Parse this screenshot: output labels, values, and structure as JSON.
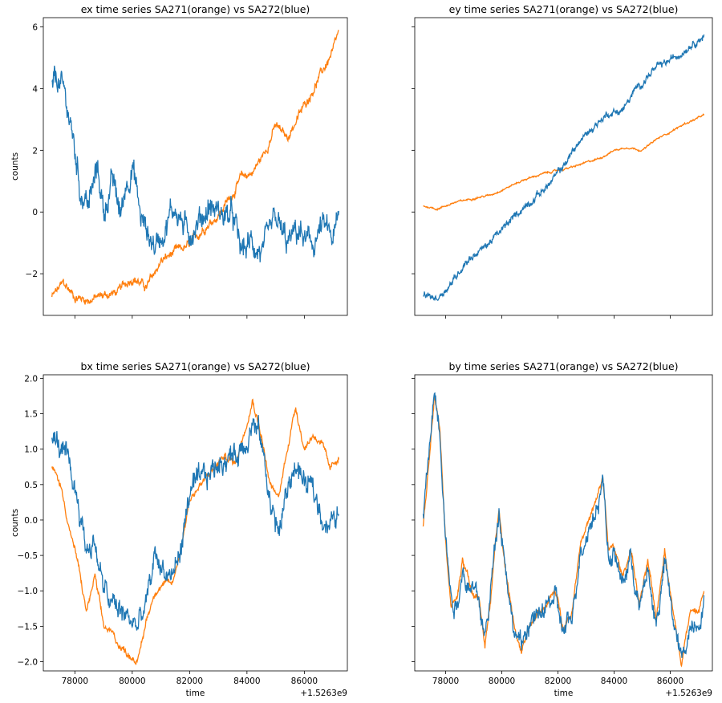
{
  "colors": {
    "orange": "#ff7f0e",
    "blue": "#1f77b4"
  },
  "chart_data": [
    {
      "type": "line",
      "title": "ex time series SA271(orange) vs SA272(blue)",
      "xlabel": "",
      "ylabel": "counts",
      "offset_text": "",
      "show_x_tick_labels": false,
      "show_y_tick_labels": true,
      "xlim": [
        76900,
        87500
      ],
      "ylim": [
        -3.35,
        6.3
      ],
      "xticks": [
        78000,
        80000,
        82000,
        84000,
        86000
      ],
      "xtick_labels": [
        "78000",
        "80000",
        "82000",
        "84000",
        "86000"
      ],
      "yticks": [
        -2,
        0,
        2,
        4,
        6
      ],
      "ytick_labels": [
        "−2",
        "0",
        "2",
        "4",
        "6"
      ],
      "noise": [
        0.15,
        0.45
      ],
      "series": [
        {
          "name": "SA271",
          "color": "orange",
          "x": [
            77200,
            77600,
            78000,
            78500,
            79000,
            79500,
            80000,
            80500,
            81000,
            81500,
            82000,
            82500,
            83000,
            83500,
            83800,
            84200,
            84600,
            85000,
            85400,
            85800,
            86200,
            86600,
            87000,
            87200
          ],
          "y": [
            -2.75,
            -2.3,
            -2.75,
            -2.85,
            -2.7,
            -2.6,
            -2.1,
            -2.45,
            -1.6,
            -1.3,
            -1.1,
            -0.5,
            -0.1,
            0.6,
            1.1,
            1.3,
            1.9,
            2.8,
            2.4,
            3.1,
            3.8,
            4.5,
            5.2,
            5.8
          ]
        },
        {
          "name": "SA272",
          "color": "blue",
          "x": [
            77200,
            77400,
            77700,
            78000,
            78200,
            78500,
            78800,
            79000,
            79300,
            79600,
            79800,
            80000,
            80300,
            80500,
            80800,
            81200,
            81500,
            81900,
            82300,
            82700,
            83000,
            83500,
            83800,
            84200,
            84600,
            85000,
            85400,
            85800,
            86200,
            86600,
            87000,
            87200
          ],
          "y": [
            4.0,
            4.3,
            3.6,
            2.0,
            0.7,
            0.3,
            1.4,
            0.0,
            1.0,
            -0.1,
            1.0,
            1.6,
            -0.2,
            -0.6,
            -1.1,
            -0.3,
            0.2,
            -0.7,
            -0.3,
            0.2,
            0.0,
            -0.2,
            -1.3,
            -1.0,
            -1.4,
            -0.3,
            -1.1,
            -0.6,
            -1.2,
            -0.5,
            -0.9,
            -0.3
          ]
        }
      ]
    },
    {
      "type": "line",
      "title": "ey time series SA271(orange) vs SA272(blue)",
      "xlabel": "",
      "ylabel": "",
      "offset_text": "",
      "show_x_tick_labels": false,
      "show_y_tick_labels": false,
      "xlim": [
        76900,
        87500
      ],
      "ylim": [
        -3.35,
        6.3
      ],
      "xticks": [
        78000,
        80000,
        82000,
        84000,
        86000
      ],
      "xtick_labels": [
        "78000",
        "80000",
        "82000",
        "84000",
        "86000"
      ],
      "yticks": [
        -2,
        0,
        2,
        4,
        6
      ],
      "ytick_labels": [
        "−2",
        "0",
        "2",
        "4",
        "6"
      ],
      "noise": [
        0.03,
        0.12
      ],
      "series": [
        {
          "name": "SA271",
          "color": "orange",
          "x": [
            77200,
            77700,
            78300,
            79000,
            79600,
            80200,
            80800,
            81500,
            82000,
            82500,
            83000,
            83500,
            84000,
            84500,
            85000,
            85500,
            86000,
            86500,
            87000,
            87200
          ],
          "y": [
            0.2,
            0.1,
            0.3,
            0.45,
            0.55,
            0.8,
            1.05,
            1.25,
            1.35,
            1.45,
            1.6,
            1.75,
            2.0,
            2.1,
            2.0,
            2.35,
            2.6,
            2.85,
            3.05,
            3.15
          ]
        },
        {
          "name": "SA272",
          "color": "blue",
          "x": [
            77200,
            77700,
            78300,
            78700,
            79300,
            80000,
            80600,
            81200,
            81700,
            82200,
            82700,
            83300,
            83800,
            84300,
            84800,
            85400,
            85800,
            86300,
            86800,
            87200
          ],
          "y": [
            -2.7,
            -2.8,
            -2.2,
            -1.6,
            -1.2,
            -0.6,
            0.0,
            0.5,
            0.9,
            1.5,
            2.2,
            2.8,
            3.2,
            3.3,
            4.0,
            4.6,
            4.8,
            5.1,
            5.5,
            5.7
          ]
        }
      ]
    },
    {
      "type": "line",
      "title": "bx time series SA271(orange) vs SA272(blue)",
      "xlabel": "time",
      "ylabel": "counts",
      "offset_text": "+1.5263e9",
      "show_x_tick_labels": true,
      "show_y_tick_labels": true,
      "xlim": [
        76900,
        87500
      ],
      "ylim": [
        -2.13,
        2.05
      ],
      "xticks": [
        78000,
        80000,
        82000,
        84000,
        86000
      ],
      "xtick_labels": [
        "78000",
        "80000",
        "82000",
        "84000",
        "86000"
      ],
      "yticks": [
        -2.0,
        -1.5,
        -1.0,
        -0.5,
        0.0,
        0.5,
        1.0,
        1.5,
        2.0
      ],
      "ytick_labels": [
        "−2.0",
        "−1.5",
        "−1.0",
        "−0.5",
        "0.0",
        "0.5",
        "1.0",
        "1.5",
        "2.0"
      ],
      "noise": [
        0.05,
        0.18
      ],
      "series": [
        {
          "name": "SA271",
          "color": "orange",
          "x": [
            77200,
            77500,
            77800,
            78100,
            78400,
            78700,
            79000,
            79300,
            79600,
            79900,
            80200,
            80500,
            80800,
            81100,
            81400,
            81700,
            82000,
            82400,
            82800,
            83200,
            83600,
            84000,
            84200,
            84500,
            84800,
            85100,
            85400,
            85700,
            86000,
            86300,
            86600,
            86900,
            87200
          ],
          "y": [
            0.75,
            0.5,
            -0.1,
            -0.6,
            -1.3,
            -0.8,
            -1.5,
            -1.6,
            -1.8,
            -1.9,
            -2.0,
            -1.4,
            -1.0,
            -0.9,
            -0.9,
            -0.4,
            0.3,
            0.5,
            0.7,
            0.9,
            0.8,
            1.4,
            1.7,
            1.2,
            0.5,
            0.3,
            1.0,
            1.6,
            1.0,
            1.2,
            1.1,
            0.7,
            0.9
          ]
        },
        {
          "name": "SA272",
          "color": "blue",
          "x": [
            77200,
            77500,
            77800,
            78100,
            78400,
            78700,
            79000,
            79300,
            79600,
            79900,
            80200,
            80500,
            80800,
            81100,
            81400,
            81700,
            82000,
            82400,
            82800,
            83200,
            83600,
            84000,
            84200,
            84500,
            84800,
            85100,
            85400,
            85700,
            86000,
            86300,
            86600,
            86900,
            87200
          ],
          "y": [
            1.15,
            1.0,
            0.7,
            0.3,
            -0.4,
            -0.3,
            -1.0,
            -1.2,
            -1.3,
            -1.4,
            -1.5,
            -1.2,
            -0.5,
            -0.7,
            -0.8,
            -0.4,
            0.4,
            0.5,
            0.7,
            0.9,
            0.9,
            1.2,
            1.4,
            1.1,
            0.3,
            -0.2,
            0.4,
            0.8,
            0.5,
            0.4,
            0.1,
            -0.1,
            0.1
          ]
        }
      ]
    },
    {
      "type": "line",
      "title": "by time series SA271(orange) vs SA272(blue)",
      "xlabel": "time",
      "ylabel": "",
      "offset_text": "+1.5263e9",
      "show_x_tick_labels": true,
      "show_y_tick_labels": false,
      "xlim": [
        76900,
        87500
      ],
      "ylim": [
        -2.13,
        2.05
      ],
      "xticks": [
        78000,
        80000,
        82000,
        84000,
        86000
      ],
      "xtick_labels": [
        "78000",
        "80000",
        "82000",
        "84000",
        "86000"
      ],
      "yticks": [
        -2.0,
        -1.5,
        -1.0,
        -0.5,
        0.0,
        0.5,
        1.0,
        1.5,
        2.0
      ],
      "ytick_labels": [
        "−2.0",
        "−1.5",
        "−1.0",
        "−0.5",
        "0.0",
        "0.5",
        "1.0",
        "1.5",
        "2.0"
      ],
      "noise": [
        0.05,
        0.14
      ],
      "series": [
        {
          "name": "SA271",
          "color": "orange",
          "x": [
            77200,
            77400,
            77600,
            77800,
            78000,
            78200,
            78400,
            78600,
            78800,
            79000,
            79200,
            79400,
            79600,
            79900,
            80100,
            80400,
            80700,
            81000,
            81300,
            81600,
            81900,
            82200,
            82500,
            82800,
            83100,
            83400,
            83600,
            83800,
            84000,
            84300,
            84600,
            84900,
            85200,
            85500,
            85800,
            86100,
            86400,
            86700,
            87000,
            87200
          ],
          "y": [
            -0.1,
            0.8,
            1.8,
            1.3,
            -0.3,
            -1.2,
            -1.1,
            -0.6,
            -0.8,
            -1.1,
            -1.1,
            -1.8,
            -1.1,
            0.2,
            -0.6,
            -1.4,
            -1.9,
            -1.5,
            -1.3,
            -1.2,
            -1.0,
            -1.5,
            -1.3,
            -0.3,
            0.0,
            0.3,
            0.6,
            -0.4,
            -0.4,
            -0.8,
            -0.4,
            -1.2,
            -0.6,
            -1.4,
            -0.4,
            -1.3,
            -2.0,
            -1.3,
            -1.3,
            -1.0
          ]
        },
        {
          "name": "SA272",
          "color": "blue",
          "x": [
            77200,
            77400,
            77600,
            77800,
            78000,
            78200,
            78400,
            78600,
            78800,
            79000,
            79200,
            79400,
            79600,
            79900,
            80100,
            80400,
            80700,
            81000,
            81300,
            81600,
            81900,
            82200,
            82500,
            82800,
            83100,
            83400,
            83600,
            83800,
            84000,
            84300,
            84600,
            84900,
            85200,
            85500,
            85800,
            86100,
            86400,
            86700,
            87000,
            87200
          ],
          "y": [
            0.0,
            0.9,
            1.8,
            1.3,
            -0.2,
            -1.1,
            -1.2,
            -0.7,
            -0.9,
            -1.0,
            -1.2,
            -1.7,
            -1.0,
            0.2,
            -0.5,
            -1.5,
            -1.8,
            -1.4,
            -1.4,
            -1.2,
            -1.1,
            -1.6,
            -1.4,
            -0.4,
            -0.1,
            0.2,
            0.6,
            -0.5,
            -0.5,
            -0.9,
            -0.5,
            -1.3,
            -0.7,
            -1.5,
            -0.6,
            -1.4,
            -2.0,
            -1.5,
            -1.4,
            -1.2
          ]
        }
      ]
    }
  ]
}
